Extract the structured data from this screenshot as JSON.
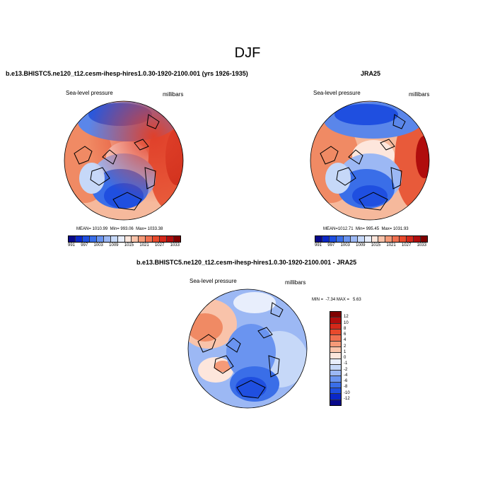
{
  "figure_title": "DJF",
  "panels": [
    {
      "title": "b.e13.BHISTC5.ne120_t12.cesm-ihesp-hires1.0.30-1920-2100.001 (yrs 1926-1935)",
      "variable": "Sea-level pressure",
      "units": "millibars",
      "stats": {
        "mean_label": "MEAN=",
        "mean": "1010.99",
        "min_label": "Min=",
        "min": "993.06",
        "max_label": "Max=",
        "max": "1033.38"
      }
    },
    {
      "title": "JRA25",
      "variable": "Sea-level pressure",
      "units": "millibars",
      "stats": {
        "mean_label": "MEAN=",
        "mean": "1012.71",
        "min_label": "Min=",
        "min": "995.45",
        "max_label": "Max=",
        "max": "1031.93"
      }
    },
    {
      "title": "b.e13.BHISTC5.ne120_t12.cesm-ihesp-hires1.0.30-1920-2100.001 - JRA25",
      "variable": "Sea-level pressure",
      "units": "millibars",
      "stats_text": "MIN =  -7.34 MAX =   5.63"
    }
  ],
  "colorbar_abs": {
    "labels": [
      "991",
      "997",
      "1003",
      "1009",
      "1015",
      "1021",
      "1027",
      "1033"
    ],
    "colors": [
      "#08088a",
      "#0a28c8",
      "#1f4fe0",
      "#3a6ee8",
      "#6a94f0",
      "#9cb8f4",
      "#c6d8f8",
      "#e8eefc",
      "#fde6dc",
      "#f9c3aa",
      "#f59a78",
      "#f07050",
      "#e84a2c",
      "#d4281a",
      "#b00d0d",
      "#800000"
    ]
  },
  "colorbar_diff": {
    "labels": [
      "12",
      "10",
      "8",
      "6",
      "4",
      "2",
      "1",
      "0",
      "-1",
      "-2",
      "-4",
      "-6",
      "-8",
      "-10",
      "-12"
    ],
    "colors": [
      "#800000",
      "#b00d0d",
      "#d4281a",
      "#e84a2c",
      "#f07050",
      "#f59a78",
      "#f9c3aa",
      "#fde6dc",
      "#e8eefc",
      "#c6d8f8",
      "#9cb8f4",
      "#6a94f0",
      "#3a6ee8",
      "#1f4fe0",
      "#0a28c8",
      "#08088a"
    ]
  }
}
